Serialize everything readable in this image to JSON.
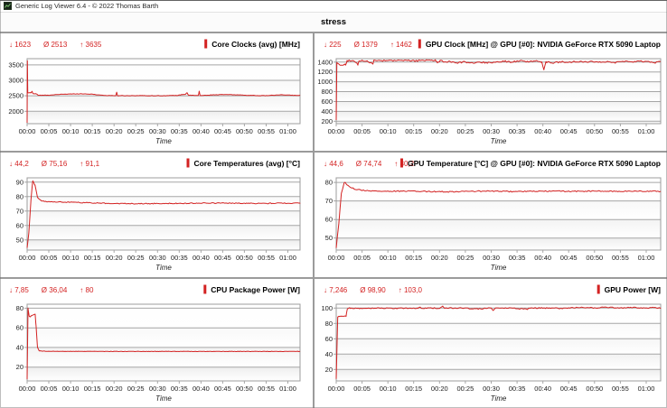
{
  "window": {
    "title": "Generic Log Viewer 6.4 - © 2022 Thomas Barth"
  },
  "page_title": "stress",
  "colors": {
    "accent": "#d32222",
    "stats_red": "#d32222",
    "grid_line": "#a6a6a6",
    "plot_border": "#9c9c9c",
    "divider": "#9b9b9b",
    "band_shade": "#7e7e7e",
    "text": "#1c1c1c"
  },
  "time_axis": {
    "label": "Time",
    "xmax": 62.8,
    "ticks": [
      {
        "m": 0,
        "t": "00:00"
      },
      {
        "m": 5,
        "t": "00:05"
      },
      {
        "m": 10,
        "t": "00:10"
      },
      {
        "m": 15,
        "t": "00:15"
      },
      {
        "m": 20,
        "t": "00:20"
      },
      {
        "m": 25,
        "t": "00:25"
      },
      {
        "m": 30,
        "t": "00:30"
      },
      {
        "m": 35,
        "t": "00:35"
      },
      {
        "m": 40,
        "t": "00:40"
      },
      {
        "m": 45,
        "t": "00:45"
      },
      {
        "m": 50,
        "t": "00:50"
      },
      {
        "m": 55,
        "t": "00:55"
      },
      {
        "m": 60,
        "t": "01:00"
      }
    ]
  },
  "chart_data": [
    {
      "key": "core-clocks",
      "type": "line",
      "title": "Core Clocks (avg) [MHz]",
      "stats": [
        {
          "symbol": "↓",
          "value": "1623"
        },
        {
          "symbol": "Ø",
          "value": "2513"
        },
        {
          "symbol": "↑",
          "value": "3635"
        }
      ],
      "yticks": [
        2000,
        2500,
        3000,
        3500
      ],
      "ymin": 1600,
      "ymax": 3700,
      "noise": 7,
      "points": [
        [
          0,
          1623
        ],
        [
          0.06,
          3635
        ],
        [
          0.14,
          2595
        ],
        [
          0.9,
          2600
        ],
        [
          1.15,
          2645
        ],
        [
          1.35,
          2570
        ],
        [
          2.2,
          2562
        ],
        [
          2.5,
          2515
        ],
        [
          4,
          2518
        ],
        [
          6,
          2528
        ],
        [
          8,
          2552
        ],
        [
          10,
          2558
        ],
        [
          12,
          2565
        ],
        [
          13.5,
          2560
        ],
        [
          15,
          2552
        ],
        [
          16.5,
          2528
        ],
        [
          18,
          2512
        ],
        [
          19.5,
          2508
        ],
        [
          20.4,
          2508
        ],
        [
          20.6,
          2612
        ],
        [
          20.8,
          2506
        ],
        [
          23,
          2504
        ],
        [
          26,
          2506
        ],
        [
          29,
          2502
        ],
        [
          32,
          2504
        ],
        [
          34.5,
          2512
        ],
        [
          35.8,
          2542
        ],
        [
          36.4,
          2548
        ],
        [
          36.8,
          2605
        ],
        [
          37.1,
          2520
        ],
        [
          38.5,
          2512
        ],
        [
          39.4,
          2512
        ],
        [
          39.6,
          2648
        ],
        [
          39.8,
          2508
        ],
        [
          41,
          2515
        ],
        [
          43,
          2532
        ],
        [
          45,
          2540
        ],
        [
          47,
          2535
        ],
        [
          49,
          2528
        ],
        [
          51,
          2515
        ],
        [
          53,
          2508
        ],
        [
          55,
          2506
        ],
        [
          57,
          2522
        ],
        [
          59,
          2530
        ],
        [
          61,
          2518
        ],
        [
          62.8,
          2512
        ]
      ]
    },
    {
      "key": "gpu-clock",
      "type": "line",
      "title": "GPU Clock [MHz] @ GPU [#0]: NVIDIA GeForce RTX 5090 Laptop",
      "stats": [
        {
          "symbol": "↓",
          "value": "225"
        },
        {
          "symbol": "Ø",
          "value": "1379"
        },
        {
          "symbol": "↑",
          "value": "1462"
        }
      ],
      "yticks": [
        200,
        400,
        600,
        800,
        1000,
        1200,
        1400
      ],
      "ymin": 150,
      "ymax": 1470,
      "noise": 16,
      "points": [
        [
          0,
          225
        ],
        [
          0.12,
          1400
        ],
        [
          0.45,
          1368
        ],
        [
          0.75,
          1332
        ],
        [
          1.4,
          1336
        ],
        [
          1.8,
          1348
        ],
        [
          2.1,
          1418
        ],
        [
          2.6,
          1428
        ],
        [
          3.5,
          1420
        ],
        [
          4.2,
          1352
        ],
        [
          4.4,
          1425
        ],
        [
          6,
          1432
        ],
        [
          7.1,
          1360
        ],
        [
          7.3,
          1428
        ],
        [
          9,
          1430
        ],
        [
          11,
          1425
        ],
        [
          13,
          1432
        ],
        [
          15,
          1424
        ],
        [
          17,
          1436
        ],
        [
          18.5,
          1430
        ],
        [
          19.2,
          1452
        ],
        [
          19.6,
          1372
        ],
        [
          20.1,
          1430
        ],
        [
          21,
          1396
        ],
        [
          22,
          1410
        ],
        [
          23.5,
          1390
        ],
        [
          25,
          1403
        ],
        [
          26.5,
          1388
        ],
        [
          28,
          1399
        ],
        [
          29.5,
          1387
        ],
        [
          31,
          1405
        ],
        [
          32.5,
          1421
        ],
        [
          34,
          1399
        ],
        [
          35.5,
          1428
        ],
        [
          37,
          1406
        ],
        [
          38.5,
          1428
        ],
        [
          39.8,
          1399
        ],
        [
          40.2,
          1248
        ],
        [
          40.6,
          1403
        ],
        [
          42,
          1383
        ],
        [
          43.5,
          1407
        ],
        [
          45,
          1389
        ],
        [
          46.5,
          1413
        ],
        [
          48,
          1396
        ],
        [
          49.5,
          1419
        ],
        [
          51,
          1399
        ],
        [
          52.5,
          1413
        ],
        [
          54,
          1391
        ],
        [
          55.5,
          1416
        ],
        [
          57,
          1399
        ],
        [
          58.5,
          1419
        ],
        [
          60,
          1406
        ],
        [
          61.5,
          1391
        ],
        [
          62.8,
          1409
        ]
      ]
    },
    {
      "key": "core-temps",
      "type": "line",
      "title": "Core Temperatures (avg) [°C]",
      "stats": [
        {
          "symbol": "↓",
          "value": "44,2"
        },
        {
          "symbol": "Ø",
          "value": "75,16"
        },
        {
          "symbol": "↑",
          "value": "91,1"
        }
      ],
      "yticks": [
        50,
        60,
        70,
        80,
        90
      ],
      "ymin": 43,
      "ymax": 93,
      "noise": 0.3,
      "points": [
        [
          0,
          44.2
        ],
        [
          0.4,
          55
        ],
        [
          0.9,
          78
        ],
        [
          1.3,
          91.1
        ],
        [
          1.8,
          88
        ],
        [
          2.4,
          79.5
        ],
        [
          3.2,
          77.2
        ],
        [
          4.5,
          76.6
        ],
        [
          6,
          76.3
        ],
        [
          9,
          76.1
        ],
        [
          12,
          75.9
        ],
        [
          15,
          75.7
        ],
        [
          18,
          75.4
        ],
        [
          21,
          75.2
        ],
        [
          25,
          75.1
        ],
        [
          30,
          75.2
        ],
        [
          35,
          75.3
        ],
        [
          40,
          75.5
        ],
        [
          45,
          75.5
        ],
        [
          50,
          75.4
        ],
        [
          55,
          75.3
        ],
        [
          60,
          75.5
        ],
        [
          62.8,
          75.4
        ]
      ]
    },
    {
      "key": "gpu-temp",
      "type": "line",
      "title": "GPU Temperature [°C] @ GPU [#0]: NVIDIA GeForce RTX 5090 Laptop",
      "stats": [
        {
          "symbol": "↓",
          "value": "44,6"
        },
        {
          "symbol": "Ø",
          "value": "74,74"
        },
        {
          "symbol": "↑",
          "value": "80,2"
        }
      ],
      "yticks": [
        50,
        60,
        70,
        80
      ],
      "ymin": 43.5,
      "ymax": 82.5,
      "noise": 0.3,
      "points": [
        [
          0,
          44.6
        ],
        [
          0.5,
          58
        ],
        [
          1.0,
          74
        ],
        [
          1.6,
          80.2
        ],
        [
          2.2,
          78.5
        ],
        [
          3.5,
          76.5
        ],
        [
          5,
          75.8
        ],
        [
          7,
          75.4
        ],
        [
          10,
          75.2
        ],
        [
          14,
          75.3
        ],
        [
          18,
          75.1
        ],
        [
          22,
          75.0
        ],
        [
          26,
          75.2
        ],
        [
          30,
          75.3
        ],
        [
          34,
          75.1
        ],
        [
          38,
          75.2
        ],
        [
          42,
          75.3
        ],
        [
          46,
          75.2
        ],
        [
          50,
          75.3
        ],
        [
          54,
          75.2
        ],
        [
          58,
          75.3
        ],
        [
          62.8,
          75.2
        ]
      ]
    },
    {
      "key": "cpu-package-power",
      "type": "line",
      "title": "CPU Package Power [W]",
      "stats": [
        {
          "symbol": "↓",
          "value": "7,85"
        },
        {
          "symbol": "Ø",
          "value": "36,04"
        },
        {
          "symbol": "↑",
          "value": "80"
        }
      ],
      "yticks": [
        20,
        40,
        60,
        80
      ],
      "ymin": 6,
      "ymax": 84,
      "noise": 0.2,
      "points": [
        [
          0,
          7.85
        ],
        [
          0.2,
          80
        ],
        [
          0.45,
          72
        ],
        [
          0.7,
          71.2
        ],
        [
          1.0,
          72.5
        ],
        [
          1.5,
          73.2
        ],
        [
          1.85,
          73.8
        ],
        [
          2.05,
          62
        ],
        [
          2.4,
          40
        ],
        [
          2.8,
          36.6
        ],
        [
          3.5,
          36.2
        ],
        [
          5,
          36.1
        ],
        [
          10,
          36.0
        ],
        [
          20,
          36.0
        ],
        [
          30,
          36.0
        ],
        [
          40,
          36.0
        ],
        [
          50,
          36.0
        ],
        [
          60,
          36.0
        ],
        [
          62.8,
          36.0
        ]
      ]
    },
    {
      "key": "gpu-power",
      "type": "line",
      "title": "GPU Power [W]",
      "stats": [
        {
          "symbol": "↓",
          "value": "7,246"
        },
        {
          "symbol": "Ø",
          "value": "98,90"
        },
        {
          "symbol": "↑",
          "value": "103,0"
        }
      ],
      "yticks": [
        20,
        40,
        60,
        80,
        100
      ],
      "ymin": 5,
      "ymax": 105,
      "noise": 0.7,
      "points": [
        [
          0,
          7.25
        ],
        [
          0.3,
          88.8
        ],
        [
          0.6,
          89.6
        ],
        [
          1.9,
          89.8
        ],
        [
          2.15,
          99.2
        ],
        [
          2.6,
          100
        ],
        [
          4,
          99.8
        ],
        [
          8,
          100
        ],
        [
          12,
          99.6
        ],
        [
          15.8,
          99.8
        ],
        [
          16.1,
          101.5
        ],
        [
          16.4,
          99.8
        ],
        [
          20,
          100
        ],
        [
          20.6,
          102
        ],
        [
          21,
          99.8
        ],
        [
          24,
          100
        ],
        [
          27.5,
          98.8
        ],
        [
          30,
          100
        ],
        [
          30.4,
          96.8
        ],
        [
          30.8,
          100
        ],
        [
          34,
          99.8
        ],
        [
          37,
          98.5
        ],
        [
          37.4,
          100
        ],
        [
          41,
          100
        ],
        [
          44,
          99.5
        ],
        [
          47,
          101
        ],
        [
          50,
          100
        ],
        [
          52,
          101
        ],
        [
          55,
          99.8
        ],
        [
          57,
          100.8
        ],
        [
          60,
          100
        ],
        [
          61.5,
          100.5
        ],
        [
          62.8,
          100.2
        ]
      ]
    }
  ]
}
